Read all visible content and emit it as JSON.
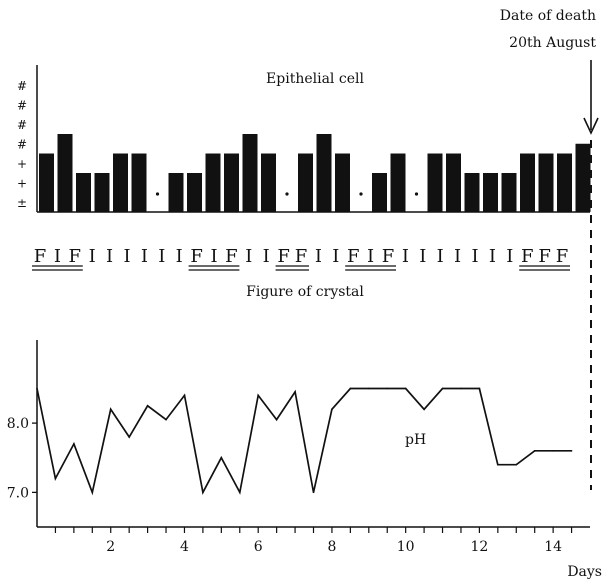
{
  "annotation": {
    "line1": "Date of death",
    "line2": "20th August"
  },
  "chart_data": [
    {
      "type": "bar",
      "title": "Epithelial cell",
      "y_tick_labels": [
        "±",
        "+",
        "+",
        "#",
        "#",
        "#",
        "#"
      ],
      "grade_scale": [
        "0",
        "±",
        "+",
        "++",
        "+++",
        "++++",
        "+++++"
      ],
      "values": [
        3,
        4,
        2,
        2,
        3,
        3,
        0,
        2,
        2,
        3,
        3,
        4,
        3,
        0,
        3,
        4,
        3,
        0,
        2,
        3,
        0,
        3,
        3,
        2,
        2,
        2,
        3,
        3,
        3,
        3.5
      ],
      "ylim": [
        0,
        7
      ]
    },
    {
      "type": "table",
      "title": "Figure of crystal",
      "sequence": [
        "F",
        "I",
        "F",
        "I",
        "I",
        "I",
        "I",
        "I",
        "I",
        "F",
        "I",
        "F",
        "I",
        "I",
        "F",
        "F",
        "I",
        "I",
        "F",
        "I",
        "F",
        "I",
        "I",
        "I",
        "I",
        "I",
        "I",
        "I",
        "F",
        "F",
        "F"
      ],
      "underlined_runs": [
        [
          0,
          2
        ],
        [
          9,
          11
        ],
        [
          14,
          15
        ],
        [
          18,
          20
        ],
        [
          28,
          30
        ]
      ]
    },
    {
      "type": "line",
      "series": [
        {
          "name": "pH",
          "x": [
            0,
            0.5,
            1,
            1.5,
            2,
            2.5,
            3,
            3.5,
            4,
            4.5,
            5,
            5.5,
            6,
            6.5,
            7,
            7.5,
            8,
            8.5,
            9,
            9.5,
            10,
            10.5,
            11,
            11.5,
            12,
            12.5,
            13,
            13.5,
            14,
            14.5
          ],
          "y": [
            8.5,
            7.2,
            7.7,
            7.0,
            8.2,
            7.8,
            8.25,
            8.05,
            8.4,
            7.0,
            7.5,
            7.0,
            8.4,
            8.05,
            8.45,
            7.0,
            8.2,
            8.5,
            8.5,
            8.5,
            8.5,
            8.2,
            8.5,
            8.5,
            8.5,
            7.4,
            7.4,
            7.6,
            7.6,
            7.6
          ]
        }
      ],
      "x_ticks": [
        2,
        4,
        6,
        8,
        10,
        12,
        14
      ],
      "x_tick_labels": [
        "2",
        "4",
        "6",
        "8",
        "10",
        "12",
        "14"
      ],
      "y_ticks": [
        7.0,
        8.0
      ],
      "y_tick_labels": [
        "7.0",
        "8.0"
      ],
      "xlabel": "Days",
      "ylabel": "",
      "xlim": [
        0,
        15
      ],
      "ylim": [
        6.5,
        9.2
      ]
    }
  ]
}
